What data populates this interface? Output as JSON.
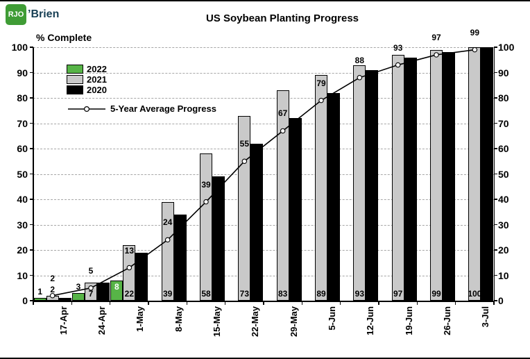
{
  "logo": {
    "box_text": "RJO",
    "suffix_text": "’Brien"
  },
  "title": "US Soybean Planting Progress",
  "legend": {
    "items": [
      {
        "label": "2022"
      },
      {
        "label": "2021"
      },
      {
        "label": "2020"
      }
    ],
    "line_label": "5-Year Average Progress"
  },
  "chart_data": {
    "type": "bar",
    "title": "US Soybean Planting Progress",
    "ylabel": "% Complete",
    "xlabel": "",
    "ylim": [
      0,
      100
    ],
    "yticks": [
      0,
      10,
      20,
      30,
      40,
      50,
      60,
      70,
      80,
      90,
      100
    ],
    "grid": "horizontal-dashed",
    "legend_position": "upper-left-inside",
    "categories": [
      "17-Apr",
      "24-Apr",
      "1-May",
      "8-May",
      "15-May",
      "22-May",
      "29-May",
      "5-Jun",
      "12-Jun",
      "19-Jun",
      "26-Jun",
      "3-Jul"
    ],
    "series": [
      {
        "name": "2022",
        "type": "bar",
        "color": "#57b447",
        "label_position": "top",
        "values": [
          1,
          3,
          8,
          null,
          null,
          null,
          null,
          null,
          null,
          null,
          null,
          null
        ]
      },
      {
        "name": "2021",
        "type": "bar",
        "color": "#c9c9c9",
        "label_position": "inside-bottom",
        "values": [
          2,
          7,
          22,
          39,
          58,
          73,
          83,
          89,
          93,
          97,
          99,
          100
        ]
      },
      {
        "name": "2020",
        "type": "bar",
        "color": "#000000",
        "label_position": "none",
        "values": [
          1,
          7,
          19,
          34,
          49,
          62,
          72,
          82,
          91,
          96,
          98,
          100
        ],
        "note": "bars unlabeled; values estimated from bar heights"
      },
      {
        "name": "5-Year Average Progress",
        "type": "line",
        "color": "#000000",
        "marker": "open-circle",
        "label_position": "above",
        "values": [
          2,
          5,
          13,
          24,
          39,
          55,
          67,
          79,
          88,
          93,
          97,
          99
        ]
      }
    ]
  }
}
